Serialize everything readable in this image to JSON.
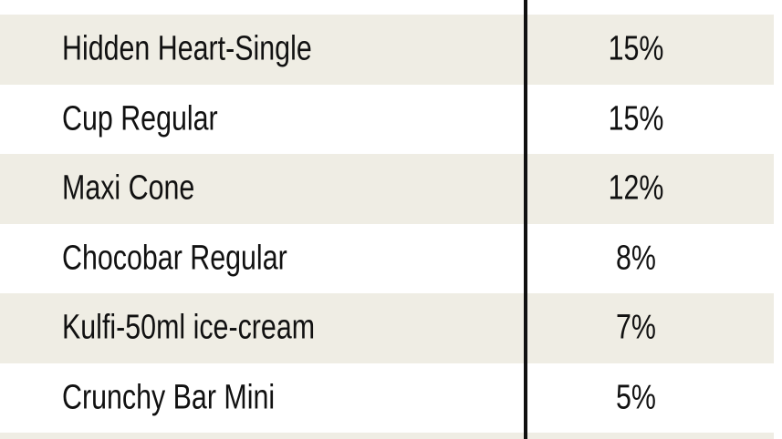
{
  "table": {
    "rows": [
      {
        "name": "Hidden Heart-Single",
        "share": "15%"
      },
      {
        "name": "Cup Regular",
        "share": "15%"
      },
      {
        "name": "Maxi Cone",
        "share": "12%"
      },
      {
        "name": "Chocobar Regular",
        "share": "8%"
      },
      {
        "name": "Kulfi-50ml ice-cream",
        "share": "7%"
      },
      {
        "name": "Crunchy Bar Mini",
        "share": "5%"
      }
    ],
    "colors": {
      "shade": "#efede4",
      "divider": "#111111"
    }
  }
}
